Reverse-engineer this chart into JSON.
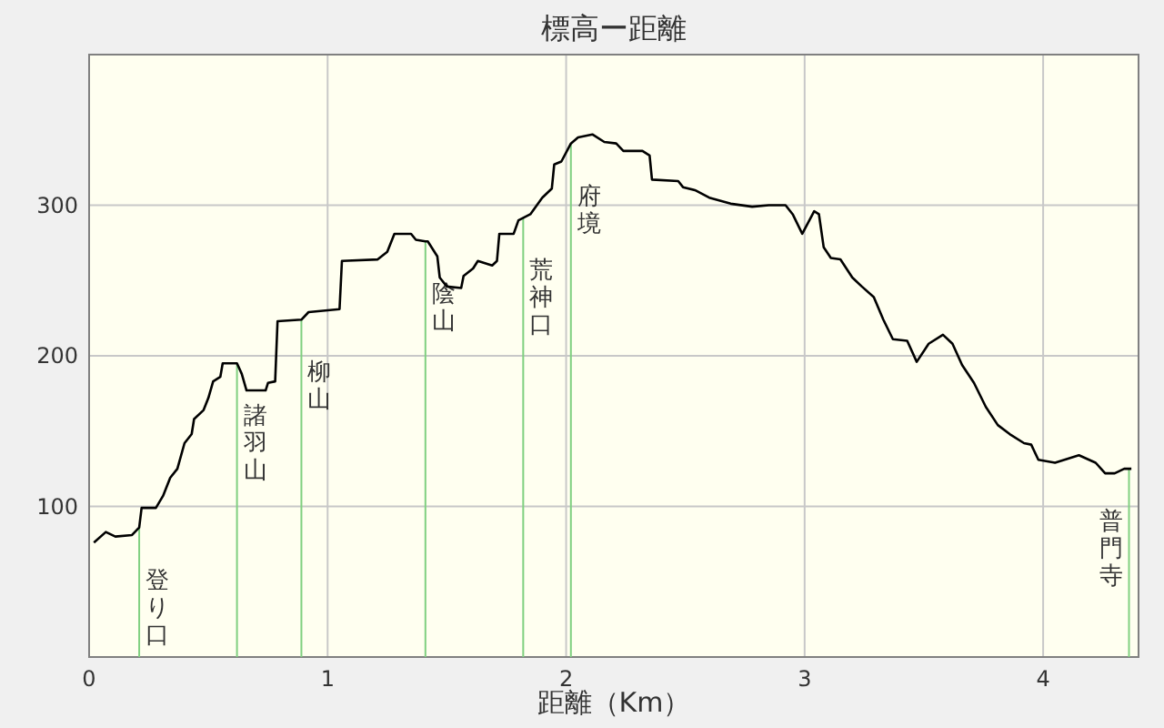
{
  "chart_data": {
    "type": "line",
    "title": "標高ー距離",
    "xlabel": "距離（Km）",
    "x": [
      0.02,
      0.07,
      0.11,
      0.18,
      0.21,
      0.22,
      0.28,
      0.31,
      0.34,
      0.37,
      0.4,
      0.43,
      0.44,
      0.48,
      0.5,
      0.52,
      0.55,
      0.56,
      0.62,
      0.64,
      0.66,
      0.74,
      0.75,
      0.78,
      0.79,
      0.89,
      0.92,
      1.05,
      1.06,
      1.21,
      1.25,
      1.28,
      1.35,
      1.37,
      1.41,
      1.42,
      1.46,
      1.47,
      1.5,
      1.56,
      1.57,
      1.61,
      1.63,
      1.69,
      1.71,
      1.72,
      1.78,
      1.8,
      1.85,
      1.9,
      1.94,
      1.95,
      1.98,
      2.02,
      2.05,
      2.11,
      2.16,
      2.21,
      2.24,
      2.32,
      2.35,
      2.36,
      2.47,
      2.49,
      2.54,
      2.6,
      2.69,
      2.78,
      2.85,
      2.92,
      2.95,
      2.99,
      3.04,
      3.06,
      3.08,
      3.11,
      3.15,
      3.2,
      3.24,
      3.29,
      3.33,
      3.37,
      3.43,
      3.47,
      3.52,
      3.58,
      3.62,
      3.66,
      3.71,
      3.76,
      3.81,
      3.86,
      3.92,
      3.95,
      3.98,
      4.05,
      4.15,
      4.22,
      4.26,
      4.3,
      4.34,
      4.37
    ],
    "series": [
      {
        "color": "#000000",
        "values": [
          76,
          83,
          80,
          81,
          86,
          99,
          99,
          107,
          119,
          125,
          142,
          148,
          158,
          164,
          172,
          183,
          186,
          195,
          195,
          188,
          177,
          177,
          182,
          183,
          223,
          224,
          229,
          231,
          263,
          264,
          269,
          281,
          281,
          277,
          276,
          276,
          266,
          252,
          246,
          245,
          253,
          258,
          263,
          260,
          263,
          281,
          281,
          290,
          294,
          305,
          311,
          327,
          329,
          341,
          345,
          347,
          342,
          341,
          336,
          336,
          333,
          317,
          316,
          312,
          310,
          305,
          301,
          299,
          300,
          300,
          294,
          281,
          296,
          294,
          272,
          265,
          264,
          252,
          246,
          239,
          224,
          211,
          210,
          196,
          208,
          214,
          208,
          194,
          182,
          166,
          154,
          148,
          142,
          141,
          131,
          129,
          134,
          129,
          122,
          122,
          125,
          125
        ]
      }
    ],
    "xlim": [
      0,
      4.4
    ],
    "ylim": [
      0,
      400
    ],
    "xticks": [
      0,
      1,
      2,
      3,
      4
    ],
    "yticks": [
      100,
      200,
      300
    ],
    "grid": true,
    "ref_lines": [
      {
        "axis": "x",
        "value": 0.21,
        "label": "登り口",
        "color": "#80d080"
      },
      {
        "axis": "x",
        "value": 0.62,
        "label": "諸羽山",
        "color": "#80d080"
      },
      {
        "axis": "x",
        "value": 0.89,
        "label": "柳山",
        "color": "#80d080"
      },
      {
        "axis": "x",
        "value": 1.41,
        "label": "陰山",
        "color": "#80d080"
      },
      {
        "axis": "x",
        "value": 1.82,
        "label": "荒神口",
        "color": "#80d080"
      },
      {
        "axis": "x",
        "value": 2.02,
        "label": "府境",
        "color": "#80d080"
      },
      {
        "axis": "x",
        "value": 4.36,
        "label": "普門寺",
        "color": "#80d080"
      }
    ]
  }
}
